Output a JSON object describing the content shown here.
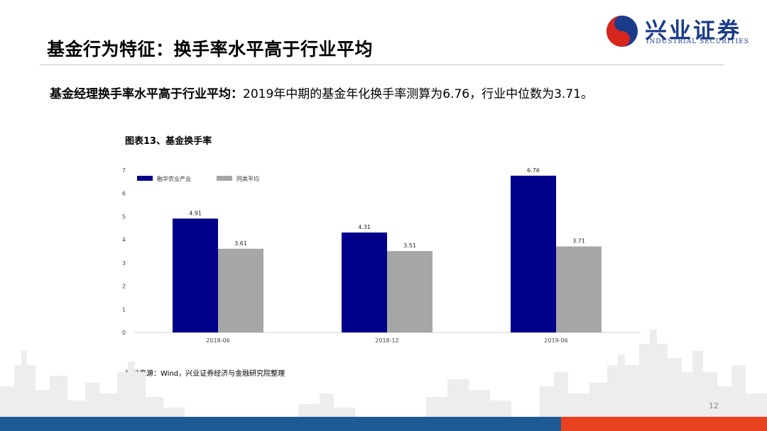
{
  "page": {
    "title": "基金行为特征：换手率水平高于行业平均",
    "summary_bold": "基金经理换手率水平高于行业平均：",
    "summary_text": "2019年中期的基金年化换手率测算为6.76，行业中位数为3.71。",
    "chart_title": "图表13、基金换手率",
    "source": "资料来源：Wind，兴业证券经济与金融研究院整理",
    "page_number": "12"
  },
  "logo": {
    "cn": "兴业证券",
    "en": "INDUSTRIAL SECURITIES"
  },
  "colors": {
    "series1": "#00008b",
    "series2": "#a6a6a6",
    "logo_red": "#d7261e",
    "logo_blue": "#1a3a8a",
    "footer_blue": "#1e5a96",
    "footer_red": "#e8431e"
  },
  "chart_data": {
    "type": "bar",
    "categories": [
      "2018-06",
      "2018-12",
      "2019-06"
    ],
    "series": [
      {
        "name": "融华农业产业",
        "values": [
          4.91,
          4.31,
          6.76
        ]
      },
      {
        "name": "同类平均",
        "values": [
          3.61,
          3.51,
          3.71
        ]
      }
    ],
    "ylim": [
      0,
      7
    ],
    "yticks": [
      0,
      1,
      2,
      3,
      4,
      5,
      6,
      7
    ],
    "legend": "top-left",
    "grid": false
  }
}
